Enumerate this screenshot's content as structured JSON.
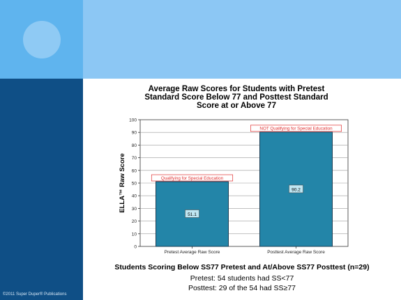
{
  "footer": {
    "copyright": "©2011 Super Duper® Publications"
  },
  "chart_data": {
    "type": "bar",
    "title": "Average Raw Scores for Students with Pretest Standard Score Below 77 and Posttest Standard Score at or Above 77",
    "title_lines": [
      "Average Raw Scores for Students with Pretest",
      "Standard Score Below 77 and Posttest Standard",
      "Score at or Above 77"
    ],
    "ylabel": "ELLA™ Raw Score",
    "xlabel": "",
    "categories": [
      "Pretest Average Raw Score",
      "Posttest Average Raw Score"
    ],
    "values": [
      51.1,
      90.2
    ],
    "value_labels": [
      "51.1",
      "90.2"
    ],
    "annotations": [
      "Qualifying for Special Education",
      "NOT Qualifying for Special Education"
    ],
    "ylim": [
      0,
      100
    ],
    "yticks": [
      0,
      10,
      20,
      30,
      40,
      50,
      60,
      70,
      80,
      90,
      100
    ],
    "grid": true,
    "colors": {
      "bar": "#2385a8",
      "bar_border": "#1a3d55",
      "annotation_border": "#e03030",
      "annotation_text": "#e03030"
    }
  },
  "caption": {
    "main": "Students Scoring Below SS77 Pretest and At/Above SS77 Posttest (n=29)",
    "lines": [
      "Pretest: 54 students had SS<77",
      "Posttest: 29 of the 54 had SS≥77"
    ]
  }
}
